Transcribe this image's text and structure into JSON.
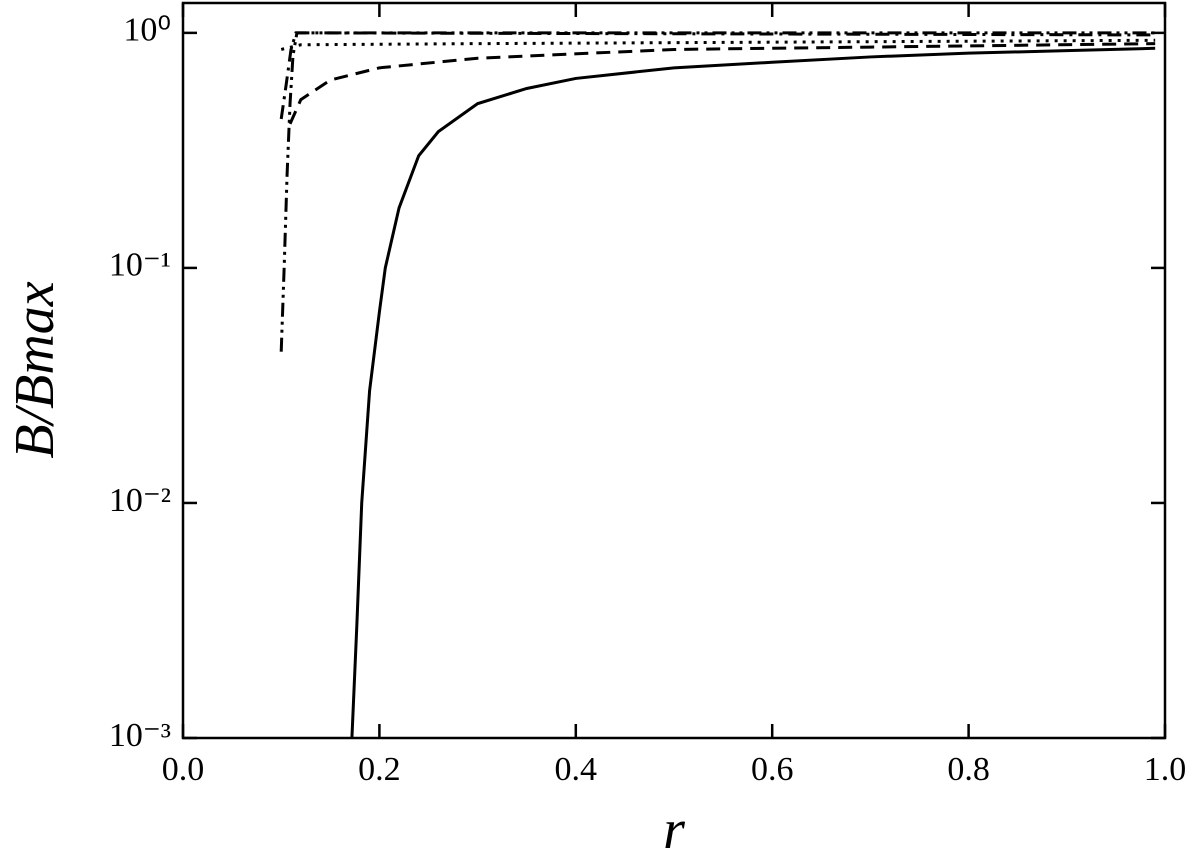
{
  "chart_data": {
    "type": "line",
    "xlabel": "r",
    "ylabel": "B/Bmax",
    "xlim": [
      0,
      1
    ],
    "ylim": [
      0.001,
      1.34
    ],
    "log_y": true,
    "grid": false,
    "xticks": [
      {
        "value": 0,
        "label": "0.0"
      },
      0.2,
      0.4,
      0.6,
      0.8,
      {
        "value": 1,
        "label": "1.0"
      }
    ],
    "yticks": [
      {
        "value": 0.001,
        "label": "10⁻³"
      },
      {
        "value": 0.01,
        "label": "10⁻²"
      },
      {
        "value": 0.1,
        "label": "10⁻¹"
      },
      {
        "value": 1,
        "label": "10⁰"
      }
    ],
    "series": [
      {
        "color": "#000000",
        "style": "solid",
        "x": [
          0.172,
          0.177,
          0.182,
          0.19,
          0.2,
          0.206,
          0.22,
          0.24,
          0.26,
          0.3,
          0.35,
          0.4,
          0.5,
          0.6,
          0.7,
          0.8,
          0.9,
          0.99
        ],
        "values": [
          0.001,
          0.003,
          0.01,
          0.03,
          0.065,
          0.1,
          0.18,
          0.3,
          0.38,
          0.5,
          0.58,
          0.64,
          0.71,
          0.75,
          0.79,
          0.82,
          0.84,
          0.86
        ]
      },
      {
        "color": "#000000",
        "style": "dashed",
        "x": [
          0.109,
          0.12,
          0.15,
          0.2,
          0.3,
          0.5,
          0.7,
          0.99
        ],
        "values": [
          0.41,
          0.52,
          0.63,
          0.71,
          0.78,
          0.85,
          0.87,
          0.9
        ]
      },
      {
        "color": "#000000",
        "style": "dotted",
        "x": [
          0.1,
          0.12,
          0.3,
          0.99
        ],
        "values": [
          0.85,
          0.89,
          0.9,
          0.93
        ]
      },
      {
        "color": "#000000",
        "style": "dashdot",
        "x": [
          0.1,
          0.105,
          0.11,
          0.115,
          0.13,
          0.99
        ],
        "values": [
          0.43,
          0.6,
          0.85,
          1.0,
          1.0,
          0.98
        ]
      },
      {
        "color": "#000000",
        "style": "dashdotdot",
        "x": [
          0.1,
          0.103,
          0.106,
          0.109,
          0.112,
          0.116,
          0.99
        ],
        "values": [
          0.044,
          0.1,
          0.25,
          0.5,
          0.8,
          1.0,
          1.0
        ]
      }
    ]
  }
}
